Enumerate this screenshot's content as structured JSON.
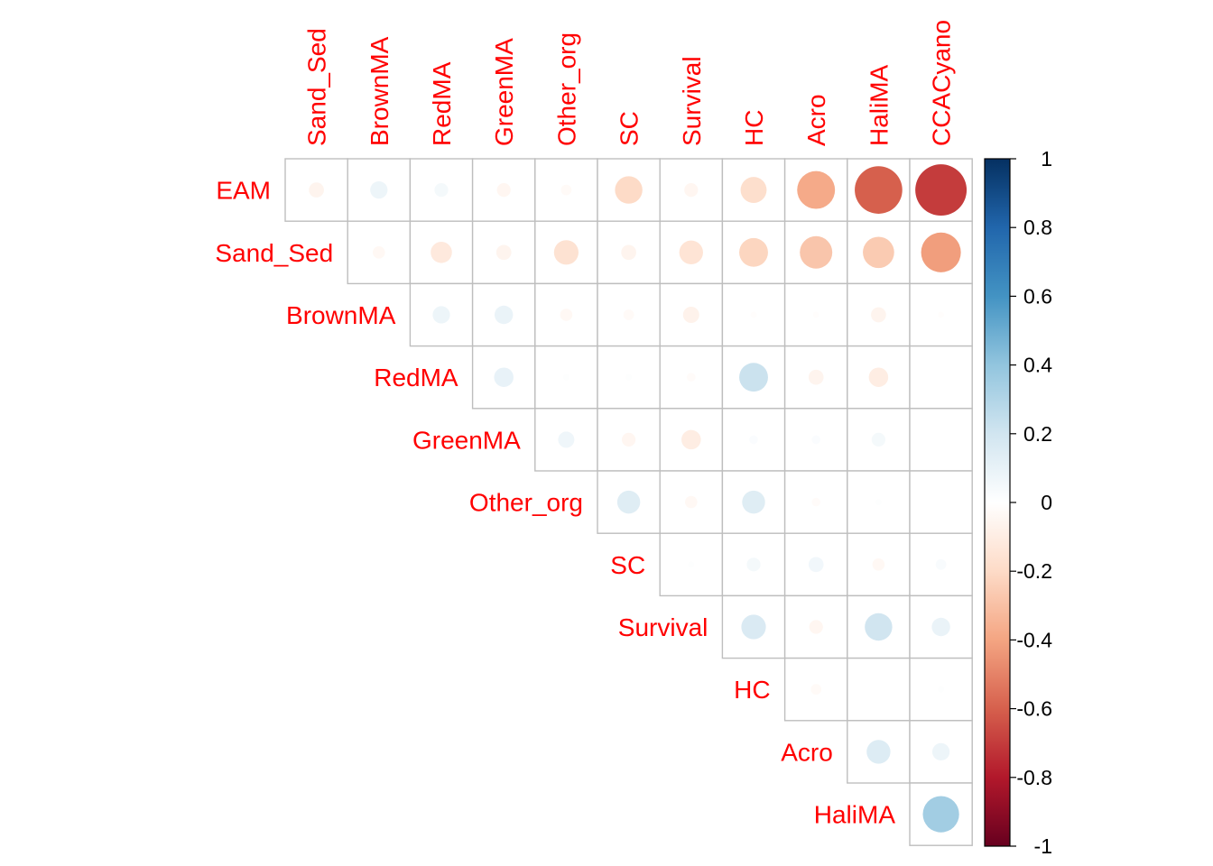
{
  "chart_data": {
    "type": "heatmap",
    "style": "circle",
    "layout": "upper-triangle (no diagonal)",
    "row_labels": [
      "EAM",
      "Sand_Sed",
      "BrownMA",
      "RedMA",
      "GreenMA",
      "Other_org",
      "SC",
      "Survival",
      "HC",
      "Acro",
      "HaliMA"
    ],
    "col_labels": [
      "Sand_Sed",
      "BrownMA",
      "RedMA",
      "GreenMA",
      "Other_org",
      "SC",
      "Survival",
      "HC",
      "Acro",
      "HaliMA",
      "CCACyano"
    ],
    "values": [
      [
        -0.06,
        0.08,
        0.05,
        -0.05,
        -0.03,
        -0.2,
        -0.05,
        -0.18,
        -0.38,
        -0.6,
        -0.7
      ],
      [
        null,
        -0.04,
        -0.12,
        -0.06,
        -0.16,
        -0.06,
        -0.15,
        -0.22,
        -0.28,
        -0.26,
        -0.42
      ],
      [
        null,
        null,
        0.08,
        0.09,
        -0.04,
        -0.03,
        -0.07,
        -0.01,
        -0.01,
        -0.06,
        -0.01
      ],
      [
        null,
        null,
        null,
        0.1,
        0.01,
        0.01,
        -0.02,
        0.22,
        -0.06,
        -0.1,
        0.0
      ],
      [
        null,
        null,
        null,
        null,
        0.07,
        -0.05,
        -0.1,
        0.02,
        0.02,
        0.05,
        0.0
      ],
      [
        null,
        null,
        null,
        null,
        null,
        0.14,
        -0.04,
        0.14,
        -0.02,
        0.01,
        0.0
      ],
      [
        null,
        null,
        null,
        null,
        null,
        null,
        0.01,
        0.05,
        0.06,
        -0.04,
        0.03
      ],
      [
        null,
        null,
        null,
        null,
        null,
        null,
        null,
        0.16,
        -0.05,
        0.2,
        0.09
      ],
      [
        null,
        null,
        null,
        null,
        null,
        null,
        null,
        null,
        -0.03,
        0.0,
        0.01
      ],
      [
        null,
        null,
        null,
        null,
        null,
        null,
        null,
        null,
        null,
        0.15,
        0.08
      ],
      [
        null,
        null,
        null,
        null,
        null,
        null,
        null,
        null,
        null,
        null,
        0.35
      ]
    ],
    "colorbar": {
      "range": [
        -1,
        1
      ],
      "ticks": [
        "1",
        "0.8",
        "0.6",
        "0.4",
        "0.2",
        "0",
        "-0.2",
        "-0.4",
        "-0.6",
        "-0.8",
        "-1"
      ],
      "tick_values": [
        1,
        0.8,
        0.6,
        0.4,
        0.2,
        0,
        -0.2,
        -0.4,
        -0.6,
        -0.8,
        -1
      ],
      "palette": [
        "#67001F",
        "#B2182B",
        "#D6604D",
        "#F4A582",
        "#FDDBC7",
        "#FFFFFF",
        "#D1E5F0",
        "#92C5DE",
        "#4393C3",
        "#2166AC",
        "#053061"
      ]
    },
    "label_color": "#ff0000",
    "grid_color": "#bebebe"
  }
}
